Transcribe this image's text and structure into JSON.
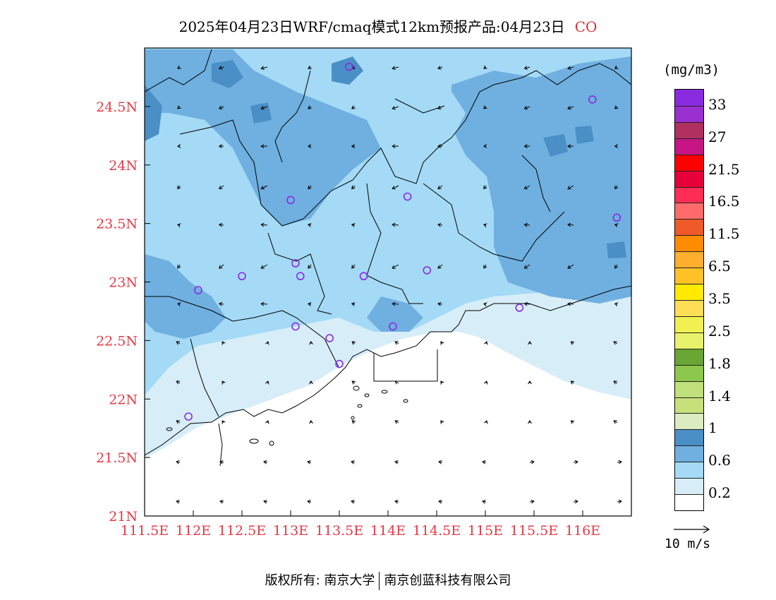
{
  "title": {
    "main": "2025年04月23日WRF/cmaq模式12km预报产品:04月23日",
    "pollutant": "CO"
  },
  "map": {
    "extent": {
      "lon_min": 111.5,
      "lon_max": 116.5,
      "lat_min": 21.0,
      "lat_max": 25.0
    },
    "lat_ticks": [
      "24.5N",
      "24N",
      "23.5N",
      "23N",
      "22.5N",
      "22N",
      "21.5N",
      "21N"
    ],
    "lon_ticks": [
      "111.5E",
      "112E",
      "112.5E",
      "113E",
      "113.5E",
      "114E",
      "114.5E",
      "115E",
      "115.5E",
      "116E"
    ],
    "tick_color": "#e63946",
    "station_color": "#8a2be2",
    "stations": [
      {
        "lon": 113.6,
        "lat": 24.84
      },
      {
        "lon": 116.1,
        "lat": 24.56
      },
      {
        "lon": 113.0,
        "lat": 23.7
      },
      {
        "lon": 114.2,
        "lat": 23.73
      },
      {
        "lon": 116.35,
        "lat": 23.55
      },
      {
        "lon": 112.5,
        "lat": 23.05
      },
      {
        "lon": 113.05,
        "lat": 23.16
      },
      {
        "lon": 113.1,
        "lat": 23.05
      },
      {
        "lon": 113.75,
        "lat": 23.05
      },
      {
        "lon": 114.4,
        "lat": 23.1
      },
      {
        "lon": 112.05,
        "lat": 22.93
      },
      {
        "lon": 115.35,
        "lat": 22.78
      },
      {
        "lon": 113.05,
        "lat": 22.62
      },
      {
        "lon": 114.05,
        "lat": 22.62
      },
      {
        "lon": 113.4,
        "lat": 22.52
      },
      {
        "lon": 113.5,
        "lat": 22.3
      },
      {
        "lon": 111.95,
        "lat": 21.85
      }
    ]
  },
  "legend": {
    "units": "(mg/m3)",
    "colors": [
      "#8a2be2",
      "#9b30d0",
      "#b03060",
      "#c71585",
      "#ff0000",
      "#e8003a",
      "#ff2d55",
      "#ff6b6b",
      "#f05a28",
      "#ff8c00",
      "#ffae2d",
      "#ffc125",
      "#ffea00",
      "#ffdd55",
      "#f0f050",
      "#e8f26a",
      "#6aa633",
      "#8cc84b",
      "#bfe07a",
      "#c8e07a",
      "#dcebc0",
      "#4a8fc6",
      "#6fb0e0",
      "#a4daf5",
      "#d7eef9",
      "#ffffff"
    ],
    "labels": [
      "33",
      "27",
      "21.5",
      "16.5",
      "11.5",
      "6.5",
      "3.5",
      "2.5",
      "1.8",
      "1.4",
      "1",
      "0.6",
      "0.2"
    ]
  },
  "wind_reference": {
    "label": "10 m/s"
  },
  "copyright": {
    "left": "版权所有: 南京大学",
    "right": "南京创蓝科技有限公司"
  }
}
